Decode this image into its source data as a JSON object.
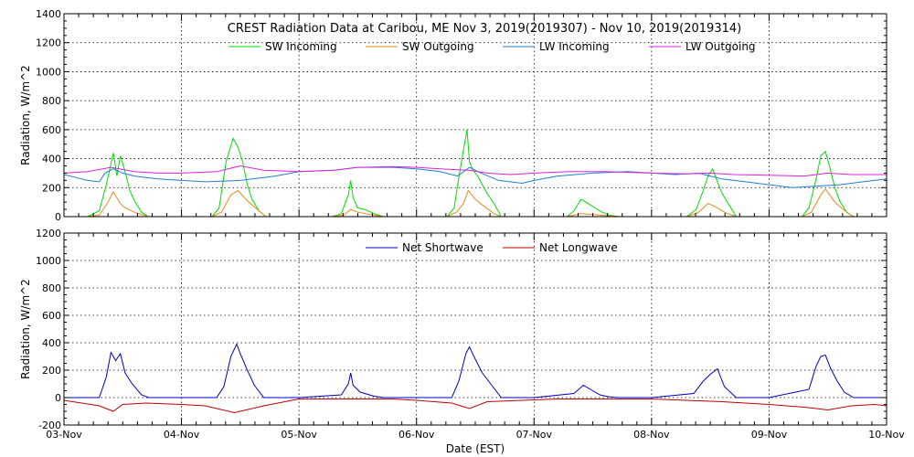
{
  "chart_data": [
    {
      "type": "line",
      "title": "CREST Radiation Data at Caribou, ME   Nov  3, 2019(2019307) - Nov 10, 2019(2019314)",
      "xlabel": "",
      "ylabel": "Radiation, W/m^2",
      "ylim": [
        0,
        1400
      ],
      "yticks": [
        "0",
        "200",
        "400",
        "600",
        "800",
        "1000",
        "1200",
        "1400"
      ],
      "x_range_days": [
        0,
        7
      ],
      "grid": true,
      "legend_position": "top",
      "series": [
        {
          "name": "SW Incoming",
          "color": "#00dd00",
          "x": [
            0.0,
            0.2,
            0.3,
            0.36,
            0.42,
            0.45,
            0.48,
            0.52,
            0.56,
            0.6,
            0.66,
            0.72,
            1.0,
            1.26,
            1.32,
            1.38,
            1.44,
            1.48,
            1.52,
            1.56,
            1.6,
            1.66,
            1.72,
            2.0,
            2.28,
            2.36,
            2.42,
            2.44,
            2.46,
            2.5,
            2.56,
            2.64,
            2.72,
            3.0,
            3.26,
            3.32,
            3.36,
            3.4,
            3.43,
            3.45,
            3.48,
            3.52,
            3.56,
            3.6,
            3.66,
            3.72,
            4.0,
            4.28,
            4.34,
            4.4,
            4.46,
            4.52,
            4.58,
            4.64,
            4.72,
            5.0,
            5.3,
            5.38,
            5.44,
            5.48,
            5.52,
            5.56,
            5.6,
            5.66,
            5.72,
            6.0,
            6.28,
            6.34,
            6.4,
            6.44,
            6.48,
            6.52,
            6.56,
            6.6,
            6.66,
            6.72,
            7.0
          ],
          "y": [
            0,
            0,
            40,
            220,
            440,
            280,
            420,
            310,
            180,
            110,
            30,
            0,
            0,
            0,
            60,
            380,
            540,
            480,
            380,
            220,
            120,
            40,
            0,
            0,
            0,
            20,
            150,
            250,
            130,
            60,
            50,
            20,
            0,
            0,
            0,
            60,
            270,
            460,
            600,
            380,
            320,
            280,
            220,
            160,
            90,
            0,
            0,
            0,
            40,
            120,
            90,
            60,
            30,
            10,
            0,
            0,
            0,
            50,
            180,
            280,
            330,
            240,
            160,
            80,
            0,
            0,
            0,
            60,
            260,
            420,
            450,
            330,
            200,
            110,
            30,
            0,
            0
          ]
        },
        {
          "name": "SW Outgoing",
          "color": "#e88a1a",
          "x": [
            0.0,
            0.2,
            0.3,
            0.36,
            0.42,
            0.48,
            0.52,
            0.6,
            0.72,
            1.0,
            1.26,
            1.34,
            1.42,
            1.48,
            1.56,
            1.66,
            1.72,
            2.0,
            2.28,
            2.38,
            2.44,
            2.5,
            2.64,
            2.72,
            3.0,
            3.26,
            3.34,
            3.4,
            3.44,
            3.5,
            3.56,
            3.66,
            3.72,
            4.0,
            4.28,
            4.4,
            4.5,
            4.64,
            4.72,
            5.0,
            5.3,
            5.4,
            5.48,
            5.54,
            5.62,
            5.72,
            6.0,
            6.28,
            6.36,
            6.44,
            6.48,
            6.56,
            6.66,
            6.72,
            7.0
          ],
          "y": [
            0,
            0,
            10,
            80,
            170,
            90,
            60,
            30,
            0,
            0,
            0,
            30,
            150,
            180,
            110,
            40,
            0,
            0,
            0,
            10,
            50,
            30,
            10,
            0,
            0,
            0,
            30,
            90,
            180,
            120,
            80,
            20,
            0,
            0,
            0,
            20,
            15,
            5,
            0,
            0,
            0,
            30,
            90,
            70,
            30,
            0,
            0,
            0,
            30,
            150,
            190,
            100,
            30,
            0,
            0
          ]
        },
        {
          "name": "LW Incoming",
          "color": "#1e7fd0",
          "x": [
            0.0,
            0.1,
            0.2,
            0.3,
            0.35,
            0.42,
            0.5,
            0.6,
            0.8,
            1.0,
            1.2,
            1.5,
            1.8,
            2.0,
            2.3,
            2.5,
            2.8,
            3.0,
            3.2,
            3.35,
            3.45,
            3.55,
            3.7,
            3.9,
            4.0,
            4.2,
            4.5,
            4.8,
            5.0,
            5.2,
            5.4,
            5.5,
            5.6,
            5.8,
            6.0,
            6.2,
            6.4,
            6.6,
            6.8,
            7.0
          ],
          "y": [
            290,
            270,
            250,
            240,
            300,
            330,
            300,
            280,
            260,
            250,
            240,
            250,
            280,
            310,
            320,
            340,
            340,
            330,
            310,
            280,
            340,
            300,
            250,
            230,
            250,
            280,
            300,
            310,
            300,
            290,
            300,
            280,
            260,
            240,
            220,
            200,
            210,
            220,
            240,
            260
          ]
        },
        {
          "name": "LW Outgoing",
          "color": "#e020e0",
          "x": [
            0.0,
            0.2,
            0.4,
            0.6,
            0.8,
            1.0,
            1.3,
            1.5,
            1.7,
            2.0,
            2.3,
            2.5,
            2.8,
            3.0,
            3.2,
            3.45,
            3.6,
            3.8,
            4.0,
            4.3,
            4.6,
            5.0,
            5.3,
            5.5,
            5.7,
            6.0,
            6.3,
            6.5,
            6.7,
            7.0
          ],
          "y": [
            300,
            310,
            340,
            310,
            300,
            300,
            310,
            350,
            320,
            310,
            320,
            340,
            345,
            340,
            330,
            320,
            300,
            290,
            300,
            310,
            310,
            300,
            295,
            300,
            290,
            285,
            280,
            300,
            290,
            290
          ]
        }
      ]
    },
    {
      "type": "line",
      "title": "",
      "xlabel": "Date (EST)",
      "ylabel": "Radiation, W/m^2",
      "ylim": [
        -200,
        1200
      ],
      "yticks": [
        "-200",
        "0",
        "200",
        "400",
        "600",
        "800",
        "1000",
        "1200"
      ],
      "x_range_days": [
        0,
        7
      ],
      "xticks": [
        "03-Nov",
        "04-Nov",
        "05-Nov",
        "06-Nov",
        "07-Nov",
        "08-Nov",
        "09-Nov",
        "10-Nov"
      ],
      "grid": true,
      "legend_position": "top",
      "series": [
        {
          "name": "Net Shortwave",
          "color": "#0000c0",
          "x": [
            0.0,
            0.3,
            0.36,
            0.4,
            0.44,
            0.48,
            0.52,
            0.58,
            0.66,
            0.72,
            1.0,
            1.3,
            1.36,
            1.42,
            1.47,
            1.5,
            1.56,
            1.62,
            1.7,
            2.0,
            2.36,
            2.42,
            2.44,
            2.46,
            2.52,
            2.64,
            2.72,
            3.0,
            3.3,
            3.36,
            3.42,
            3.45,
            3.5,
            3.56,
            3.64,
            3.72,
            4.0,
            4.34,
            4.42,
            4.48,
            4.56,
            4.64,
            4.72,
            5.0,
            5.36,
            5.44,
            5.5,
            5.56,
            5.62,
            5.72,
            6.0,
            6.34,
            6.4,
            6.44,
            6.48,
            6.52,
            6.58,
            6.64,
            6.72,
            7.0
          ],
          "y": [
            0,
            0,
            150,
            330,
            270,
            320,
            180,
            100,
            20,
            0,
            0,
            0,
            80,
            300,
            390,
            320,
            200,
            90,
            0,
            0,
            20,
            100,
            180,
            90,
            40,
            10,
            0,
            0,
            0,
            120,
            320,
            370,
            280,
            180,
            90,
            0,
            0,
            30,
            90,
            60,
            20,
            5,
            0,
            0,
            30,
            120,
            170,
            210,
            80,
            0,
            0,
            60,
            230,
            300,
            310,
            220,
            120,
            40,
            0,
            0
          ]
        },
        {
          "name": "Net Longwave",
          "color": "#c00000",
          "x": [
            0.0,
            0.15,
            0.3,
            0.42,
            0.5,
            0.7,
            1.0,
            1.2,
            1.45,
            1.7,
            2.0,
            2.3,
            2.5,
            2.8,
            3.0,
            3.3,
            3.45,
            3.6,
            3.9,
            4.2,
            4.5,
            4.8,
            5.0,
            5.3,
            5.6,
            5.8,
            6.0,
            6.3,
            6.5,
            6.7,
            6.9,
            7.0
          ],
          "y": [
            -20,
            -40,
            -60,
            -100,
            -50,
            -40,
            -50,
            -60,
            -110,
            -60,
            -10,
            -10,
            -10,
            -10,
            -20,
            -40,
            -80,
            -30,
            -20,
            -10,
            -10,
            -10,
            -10,
            -20,
            -30,
            -40,
            -50,
            -70,
            -90,
            -60,
            -50,
            -60
          ]
        }
      ]
    }
  ]
}
